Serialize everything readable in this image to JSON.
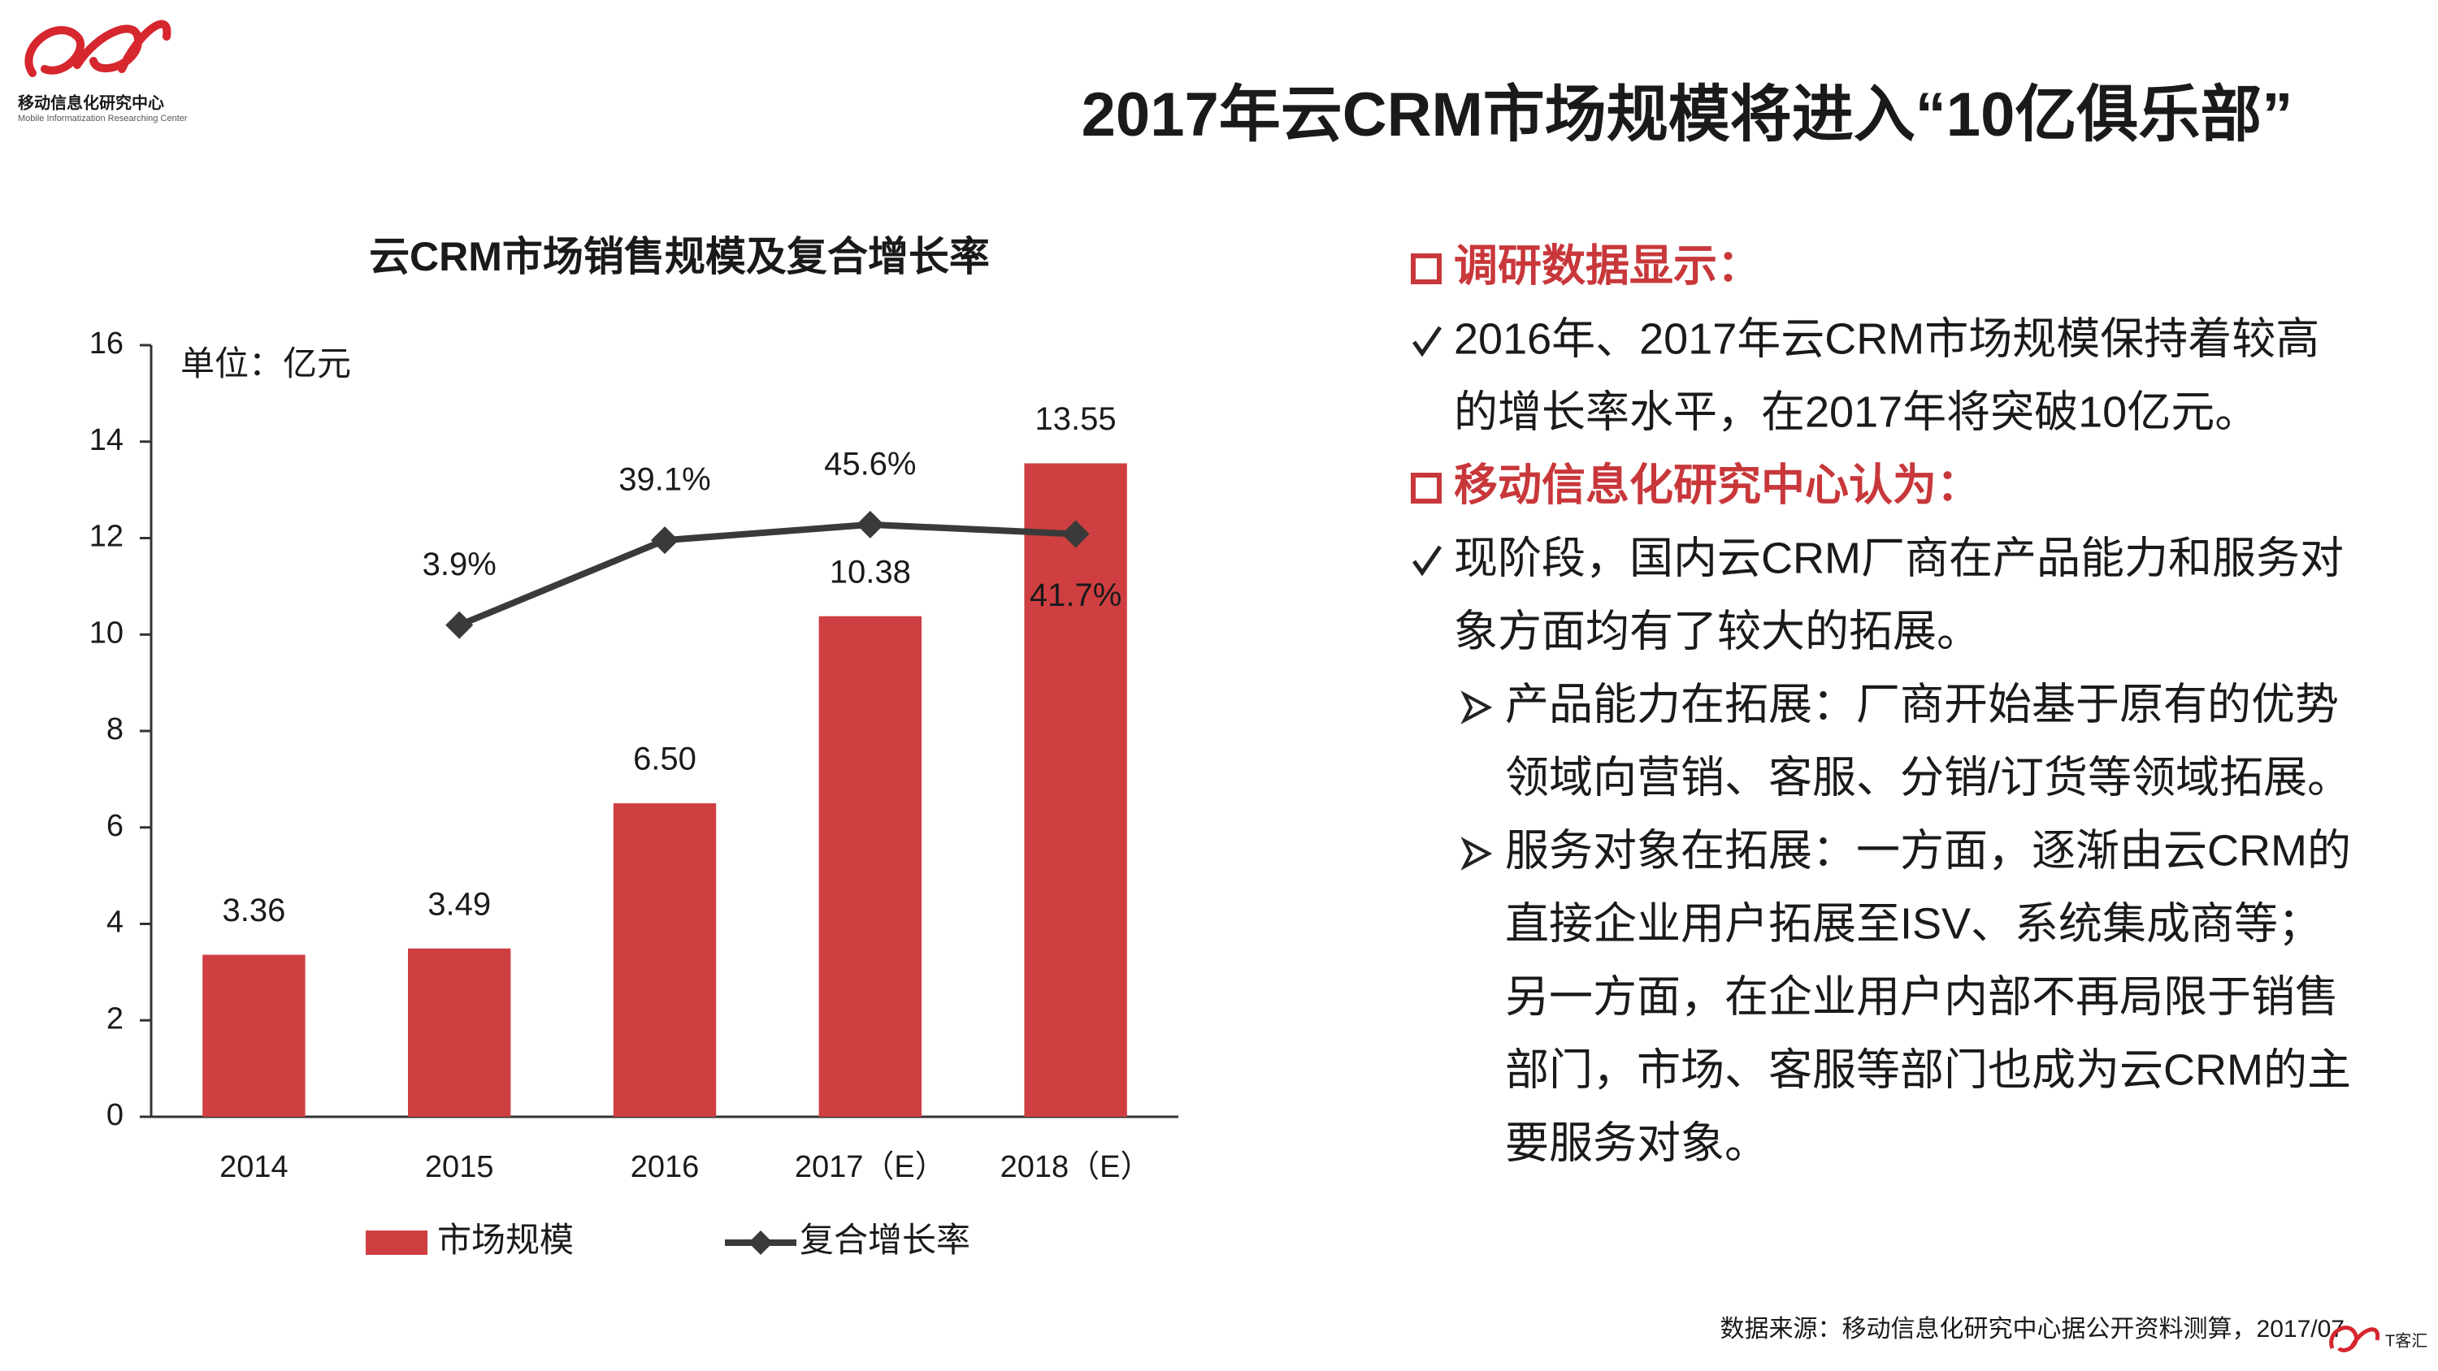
{
  "header": {
    "logo_text": "移动信息化研究中心",
    "logo_subtext": "Mobile Informatization Researching Center",
    "title": "2017年云CRM市场规模将进入“10亿俱乐部”"
  },
  "chart_data": {
    "type": "bar-line",
    "title": "云CRM市场销售规模及复合增长率",
    "unit": "单位：亿元",
    "categories": [
      "2014",
      "2015",
      "2016",
      "2017（E）",
      "2018（E）"
    ],
    "series": [
      {
        "name": "市场规模",
        "type": "bar",
        "color": "#cf3f41",
        "values": [
          3.36,
          3.49,
          6.5,
          10.38,
          13.55
        ],
        "value_labels": [
          "3.36",
          "3.49",
          "6.50",
          "10.38",
          "13.55"
        ]
      },
      {
        "name": "复合增长率",
        "type": "line",
        "axis": "y2",
        "color": "#3a3a3a",
        "values": [
          null,
          3.9,
          39.1,
          45.6,
          41.7
        ],
        "value_labels": [
          null,
          "3.9%",
          "39.1%",
          "45.6%",
          "41.7%"
        ]
      }
    ],
    "ylim": [
      0,
      16
    ],
    "yticks": [
      0,
      2,
      4,
      6,
      8,
      10,
      12,
      14,
      16
    ],
    "y2lim": [
      -200,
      120
    ],
    "legend": "bottom"
  },
  "panel": {
    "sections": [
      {
        "heading": "调研数据显示：",
        "items": [
          {
            "lines": [
              "2016年、2017年云CRM市场规模保持着较高",
              "的增长率水平，在2017年将突破10亿元。"
            ]
          }
        ]
      },
      {
        "heading": "移动信息化研究中心认为：",
        "items": [
          {
            "lines": [
              "现阶段，国内云CRM厂商在产品能力和服务对",
              "象方面均有了较大的拓展。"
            ],
            "subitems": [
              {
                "lines": [
                  "产品能力在拓展：厂商开始基于原有的优势",
                  "领域向营销、客服、分销/订货等领域拓展。"
                ]
              },
              {
                "lines": [
                  "服务对象在拓展：一方面，逐渐由云CRM的",
                  "直接企业用户拓展至ISV、系统集成商等；",
                  "另一方面，在企业用户内部不再局限于销售",
                  "部门，市场、客服等部门也成为云CRM的主",
                  "要服务对象。"
                ]
              }
            ]
          }
        ]
      }
    ]
  },
  "footer": {
    "source": "数据来源：移动信息化研究中心据公开资料测算，2017/07",
    "brand": "T客汇"
  }
}
